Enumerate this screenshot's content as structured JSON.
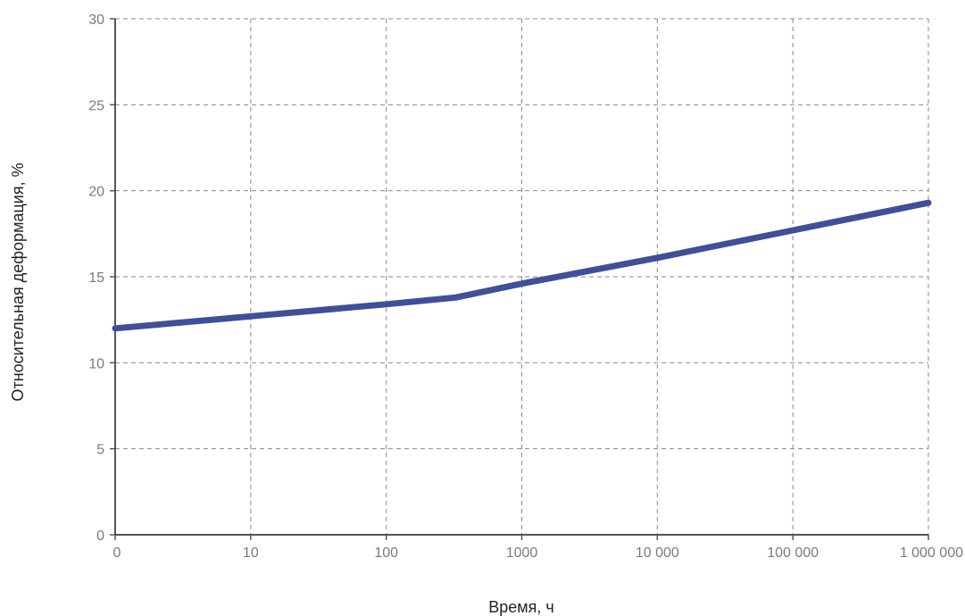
{
  "chart_data": {
    "type": "line",
    "title": "",
    "xlabel": "Время, ч",
    "ylabel": "Относительная деформация, %",
    "x_scale": "log",
    "x_tick_labels": [
      "0",
      "10",
      "100",
      "1000",
      "10 000",
      "100 000",
      "1 000 000"
    ],
    "x_tick_values": [
      1,
      10,
      100,
      1000,
      10000,
      100000,
      1000000
    ],
    "y_tick_labels": [
      "0",
      "5",
      "10",
      "15",
      "20",
      "25",
      "30"
    ],
    "y_tick_values": [
      0,
      5,
      10,
      15,
      20,
      25,
      30
    ],
    "ylim": [
      0,
      30
    ],
    "grid": true,
    "legend": "none",
    "series": [
      {
        "color": "#3f4f99",
        "x": [
          1,
          10,
          100,
          330,
          1000,
          10000,
          100000,
          1000000
        ],
        "y": [
          12.0,
          12.7,
          13.4,
          13.8,
          14.6,
          16.1,
          17.7,
          19.3
        ]
      }
    ]
  }
}
